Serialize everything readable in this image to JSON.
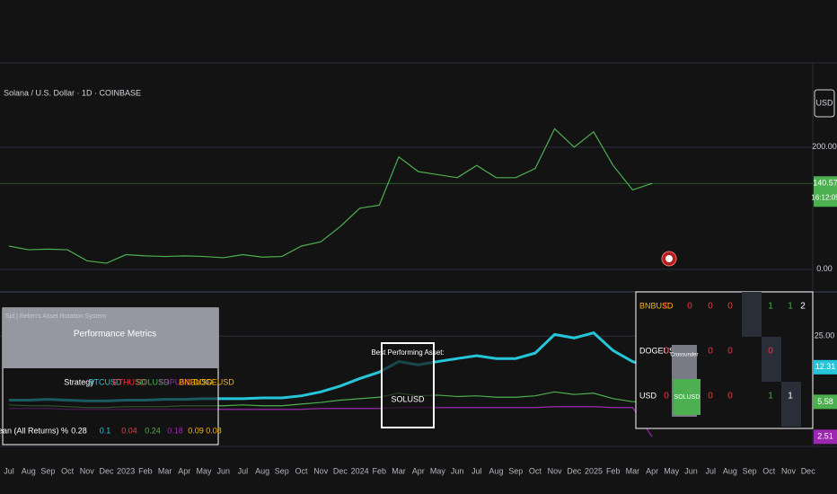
{
  "header": {
    "symbol": "Solana / U.S. Dollar · 1D · COINBASE"
  },
  "time_axis": [
    "Jul",
    "Aug",
    "Sep",
    "Oct",
    "Nov",
    "Dec",
    "2023",
    "Feb",
    "Mar",
    "Apr",
    "May",
    "Jun",
    "Jul",
    "Aug",
    "Sep",
    "Oct",
    "Nov",
    "Dec",
    "2024",
    "Feb",
    "Mar",
    "Apr",
    "May",
    "Jun",
    "Jul",
    "Aug",
    "Sep",
    "Oct",
    "Nov",
    "Dec",
    "2025",
    "Feb",
    "Mar",
    "Apr",
    "May",
    "Jun",
    "Jul",
    "Aug",
    "Sep",
    "Oct",
    "Nov",
    "Dec"
  ],
  "chart_data": [
    {
      "type": "line",
      "axis_unit": "USD",
      "ylim": [
        -37,
        335
      ],
      "yticks": [
        {
          "value": 0,
          "label": "0.00"
        },
        {
          "value": 200,
          "label": "200.00"
        }
      ],
      "last_time": "16:12:05",
      "series": [
        {
          "color": "#4caf50",
          "values": [
            38,
            32,
            33,
            32,
            14,
            10,
            24,
            22,
            21,
            22,
            21,
            19,
            24,
            20,
            21,
            38,
            45,
            70,
            100,
            105,
            184,
            160,
            155,
            150,
            170,
            150,
            150,
            165,
            230,
            200,
            225,
            170,
            130,
            140.57
          ]
        }
      ]
    },
    {
      "type": "line",
      "log": true,
      "ylim": [
        2.1,
        66
      ],
      "yticks": [
        {
          "value": 25,
          "label": "25.00"
        }
      ],
      "series": [
        {
          "color": "#26c6da",
          "values": [
            5.8,
            5.8,
            5.9,
            5.8,
            5.7,
            5.7,
            5.8,
            5.8,
            5.9,
            5.9,
            6.0,
            6.0,
            6.0,
            6.1,
            6.1,
            6.4,
            7.0,
            8.0,
            9.5,
            11,
            14,
            13,
            14,
            15,
            16,
            15,
            15,
            17,
            26,
            24,
            27,
            18,
            14,
            12.31
          ]
        },
        {
          "color": "#4caf50",
          "values": [
            5.2,
            5.1,
            5.1,
            5.0,
            4.9,
            4.9,
            5.0,
            5.0,
            5.0,
            5.1,
            5.1,
            5.1,
            5.2,
            5.1,
            5.1,
            5.3,
            5.5,
            5.8,
            6.0,
            6.2,
            6.8,
            6.4,
            6.5,
            6.3,
            6.4,
            6.2,
            6.2,
            6.4,
            7.0,
            6.6,
            6.8,
            6.0,
            5.6,
            5.58
          ]
        },
        {
          "color": "#9c27b0",
          "values": [
            4.8,
            4.8,
            4.8,
            4.7,
            4.7,
            4.7,
            4.7,
            4.7,
            4.7,
            4.7,
            4.7,
            4.7,
            4.7,
            4.7,
            4.7,
            4.7,
            4.8,
            4.8,
            4.8,
            4.8,
            4.9,
            4.9,
            4.9,
            4.9,
            4.9,
            4.9,
            4.9,
            4.9,
            5.0,
            5.0,
            5.0,
            4.9,
            4.9,
            2.51
          ]
        }
      ]
    }
  ],
  "performance_table": {
    "system": "Sjd | Rebrn's Asset Rotation System",
    "title": "Performance Metrics",
    "header": [
      "Strategy",
      "BTCUSD",
      "ETHUSD",
      "SOLUSD",
      "XRPUSD",
      "BNBUSD",
      "DOGEUSD"
    ],
    "colors": [
      "#ffffff",
      "#26c6da",
      "#f23645",
      "#4caf50",
      "#9c27b0",
      "#ffb300",
      "#ffb300"
    ],
    "row_label": "Mean (All Returns) %",
    "row": [
      0.28,
      0.1,
      0.04,
      0.24,
      0.18,
      0.09,
      0.08
    ]
  },
  "best_asset": {
    "label": "Best Performing Asset:",
    "value": "SOLUSD"
  },
  "signal_table": {
    "rows": [
      {
        "name": "BNBUSD",
        "values": [
          0,
          0,
          0,
          0,
          1,
          1,
          2
        ]
      },
      {
        "name": "DOGEUSD",
        "values": [
          0,
          0,
          0,
          0,
          0
        ]
      },
      {
        "name": "USD",
        "values": [
          0,
          0,
          0,
          0,
          1,
          1
        ]
      }
    ]
  },
  "tooltip": {
    "title": "Crossunder",
    "asset": "SOLUSD"
  }
}
